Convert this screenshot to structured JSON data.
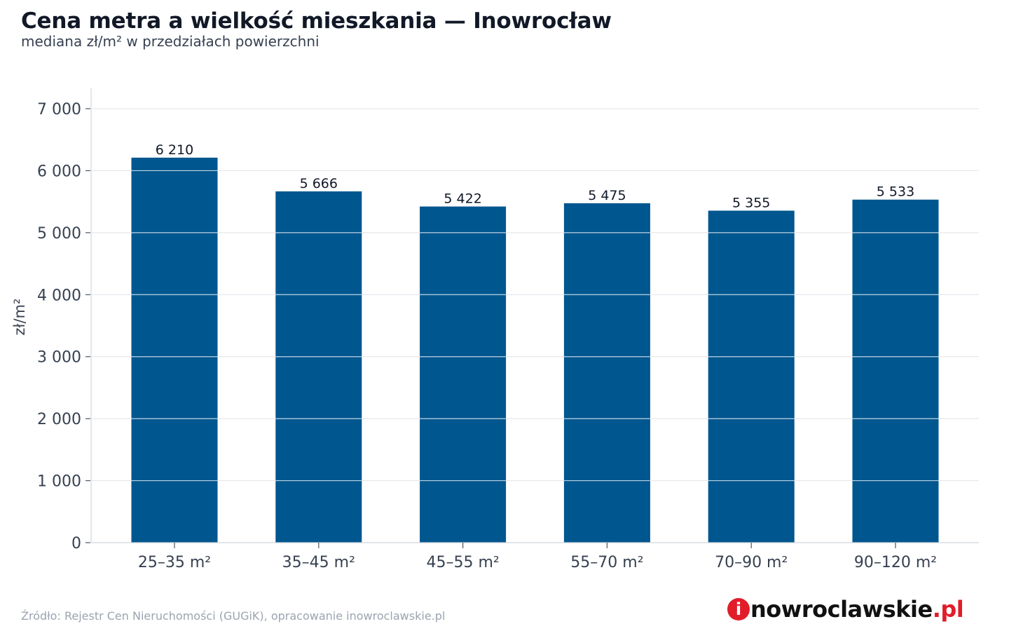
{
  "header": {
    "title": "Cena metra a wielkość mieszkania — Inowrocław",
    "subtitle": "mediana zł/m² w przedziałach powierzchni"
  },
  "footer": {
    "source": "Źródło: Rejestr Cen Nieruchomości (GUGiK), opracowanie inowroclawskie.pl",
    "logo_mark": "i",
    "logo_name": "nowroclawskie",
    "logo_tld": ".pl"
  },
  "colors": {
    "bar": "#00568f",
    "grid": "#e5e7eb",
    "axis": "#d1d5db"
  },
  "chart_data": {
    "type": "bar",
    "categories": [
      "25–35 m²",
      "35–45 m²",
      "45–55 m²",
      "55–70 m²",
      "70–90 m²",
      "90–120 m²"
    ],
    "values": [
      6210,
      5666,
      5422,
      5475,
      5355,
      5533
    ],
    "data_labels": [
      "6 210",
      "5 666",
      "5 422",
      "5 475",
      "5 355",
      "5 533"
    ],
    "title": "Cena metra a wielkość mieszkania — Inowrocław",
    "subtitle": "mediana zł/m² w przedziałach powierzchni",
    "xlabel": "",
    "ylabel": "zł/m²",
    "ylim": [
      0,
      7000
    ],
    "yticks": [
      0,
      1000,
      2000,
      3000,
      4000,
      5000,
      6000,
      7000
    ],
    "ytick_labels": [
      "0",
      "1 000",
      "2 000",
      "3 000",
      "4 000",
      "5 000",
      "6 000",
      "7 000"
    ],
    "grid": true,
    "legend": "none"
  }
}
